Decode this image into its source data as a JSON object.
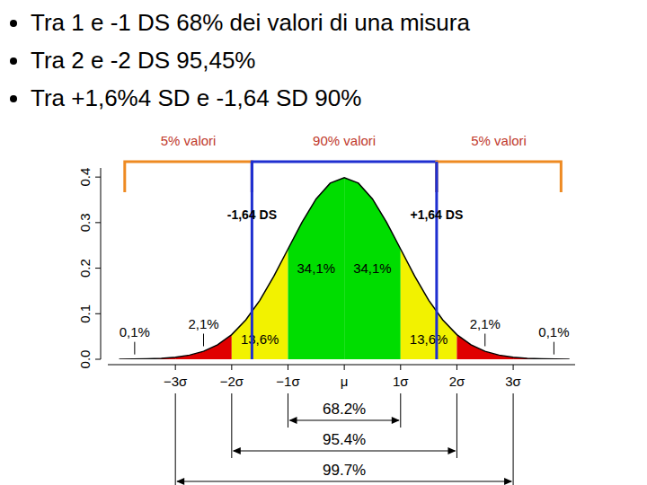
{
  "bullets": [
    "Tra 1 e -1 DS  68% dei valori di una misura",
    "Tra 2 e -2 DS  95,45%",
    "Tra  +1,6%4 SD e -1,64 SD 90%"
  ],
  "chart_data": {
    "type": "area",
    "x": [
      -4,
      -3.75,
      -3.5,
      -3.25,
      -3,
      -2.75,
      -2.5,
      -2.25,
      -2,
      -1.75,
      -1.5,
      -1.25,
      -1,
      -0.75,
      -0.5,
      -0.25,
      0,
      0.25,
      0.5,
      0.75,
      1,
      1.25,
      1.5,
      1.75,
      2,
      2.25,
      2.5,
      2.75,
      3,
      3.25,
      3.5,
      3.75,
      4
    ],
    "values": [
      0.0001,
      0.0004,
      0.0009,
      0.002,
      0.0044,
      0.0091,
      0.0175,
      0.0317,
      0.054,
      0.0863,
      0.1295,
      0.1826,
      0.242,
      0.3011,
      0.3521,
      0.3867,
      0.3989,
      0.3867,
      0.3521,
      0.3011,
      0.242,
      0.1826,
      0.1295,
      0.0863,
      0.054,
      0.0317,
      0.0175,
      0.0091,
      0.0044,
      0.002,
      0.0009,
      0.0004,
      0.0001
    ],
    "color": "#000000",
    "xlim": [
      -4.2,
      4.1
    ],
    "ylim": [
      0,
      0.42
    ],
    "xticks": [
      {
        "value": -3,
        "label": "−3σ"
      },
      {
        "value": -2,
        "label": "−2σ"
      },
      {
        "value": -1,
        "label": "−1σ"
      },
      {
        "value": 0,
        "label": "μ"
      },
      {
        "value": 1,
        "label": "1σ"
      },
      {
        "value": 2,
        "label": "2σ"
      },
      {
        "value": 3,
        "label": "3σ"
      }
    ],
    "yticks": [
      {
        "value": 0,
        "label": "0.0"
      },
      0.1,
      0.2,
      0.3,
      0.4
    ],
    "grid": false,
    "regions": [
      {
        "from": -4,
        "to": -3,
        "color": "#e00000",
        "label": "0,1%",
        "value": 0.1
      },
      {
        "from": -3,
        "to": -2,
        "color": "#e00000",
        "label": "2,1%",
        "value": 2.1
      },
      {
        "from": -2,
        "to": -1,
        "color": "#f2f200",
        "label": "13,6%",
        "value": 13.6
      },
      {
        "from": -1,
        "to": 0,
        "color": "#00dd00",
        "label": "34,1%",
        "value": 34.1
      },
      {
        "from": 0,
        "to": 1,
        "color": "#00dd00",
        "label": "34,1%",
        "value": 34.1
      },
      {
        "from": 1,
        "to": 2,
        "color": "#f2f200",
        "label": "13,6%",
        "value": 13.6
      },
      {
        "from": 2,
        "to": 3,
        "color": "#e00000",
        "label": "2,1%",
        "value": 2.1
      },
      {
        "from": 3,
        "to": 4,
        "color": "#e00000",
        "label": "0,1%",
        "value": 0.1
      }
    ],
    "spans": [
      {
        "from": -1,
        "to": 1,
        "label": "68.2%",
        "value": 68.2
      },
      {
        "from": -2,
        "to": 2,
        "label": "95.4%",
        "value": 95.4
      },
      {
        "from": -3,
        "to": 3,
        "label": "99.7%",
        "value": 99.7
      }
    ],
    "markers": [
      {
        "x": -1.64,
        "label": "-1,64 DS",
        "color": "#1f2fd0"
      },
      {
        "x": 1.64,
        "label": "+1,64 DS",
        "color": "#1f2fd0"
      }
    ],
    "brackets": [
      {
        "from": -3.9,
        "to": -1.64,
        "label": "5% valori",
        "value": 5,
        "color": "#ee8a22"
      },
      {
        "from": -1.64,
        "to": 1.64,
        "label": "90% valori",
        "value": 90,
        "color": "#1f2fd0"
      },
      {
        "from": 1.64,
        "to": 3.85,
        "label": "5% valori",
        "value": 5,
        "color": "#ee8a22"
      }
    ]
  }
}
